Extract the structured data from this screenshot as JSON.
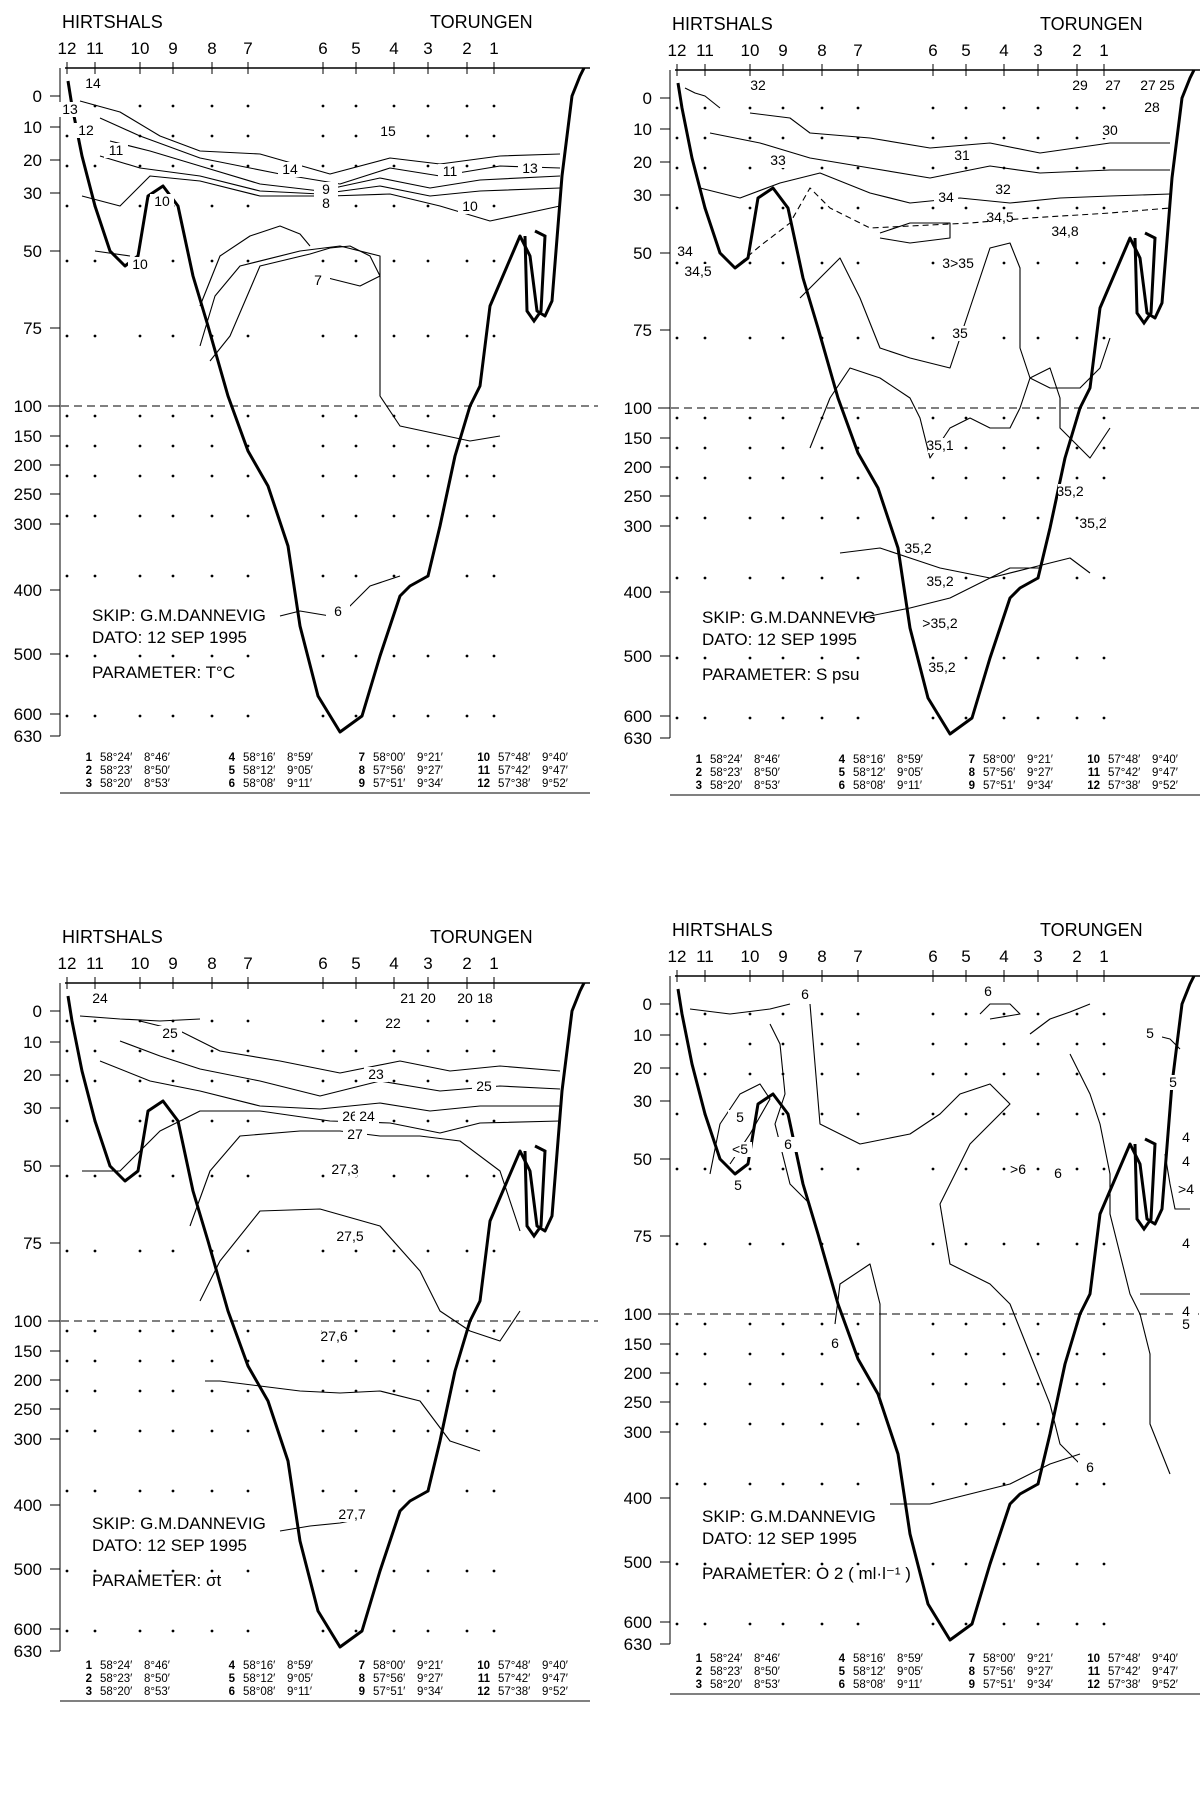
{
  "station_labels": [
    "12",
    "11",
    "10",
    "9",
    "8",
    "7",
    "6",
    "5",
    "4",
    "3",
    "2",
    "1"
  ],
  "depth_labels": [
    "0",
    "10",
    "20",
    "30",
    "50",
    "75",
    "100",
    "150",
    "200",
    "250",
    "300",
    "400",
    "500",
    "600",
    "630"
  ],
  "coordinates": [
    {
      "n": "1",
      "lat": "58°24′",
      "lon": "8°46′"
    },
    {
      "n": "2",
      "lat": "58°23′",
      "lon": "8°50′"
    },
    {
      "n": "3",
      "lat": "58°20′",
      "lon": "8°53′"
    },
    {
      "n": "4",
      "lat": "58°16′",
      "lon": "8°59′"
    },
    {
      "n": "5",
      "lat": "58°12′",
      "lon": "9°05′"
    },
    {
      "n": "6",
      "lat": "58°08′",
      "lon": "9°11′"
    },
    {
      "n": "7",
      "lat": "58°00′",
      "lon": "9°21′"
    },
    {
      "n": "8",
      "lat": "57°56′",
      "lon": "9°27′"
    },
    {
      "n": "9",
      "lat": "57°51′",
      "lon": "9°34′"
    },
    {
      "n": "10",
      "lat": "57°48′",
      "lon": "9°40′"
    },
    {
      "n": "11",
      "lat": "57°42′",
      "lon": "9°47′"
    },
    {
      "n": "12",
      "lat": "57°38′",
      "lon": "9°52′"
    }
  ],
  "chart_data": [
    {
      "type": "contour-section",
      "left_label": "HIRTSHALS",
      "right_label": "TORUNGEN",
      "ship": "SKIP: G.M.DANNEVIG",
      "date": "DATO: 12 SEP 1995",
      "parameter": "PARAMETER: T°C",
      "y_ticks": [
        0,
        10,
        20,
        30,
        50,
        75,
        100,
        150,
        200,
        250,
        300,
        400,
        500,
        600,
        630
      ],
      "isoline_labels": [
        "14",
        "13",
        "12",
        "11",
        "10",
        "15",
        "14",
        "9",
        "8",
        "11",
        "13",
        "10",
        "7",
        "10",
        "6"
      ]
    },
    {
      "type": "contour-section",
      "left_label": "HIRTSHALS",
      "right_label": "TORUNGEN",
      "ship": "SKIP: G.M.DANNEVIG",
      "date": "DATO: 12 SEP 1995",
      "parameter": "PARAMETER: S psu",
      "y_ticks": [
        0,
        10,
        20,
        30,
        50,
        75,
        100,
        150,
        200,
        250,
        300,
        400,
        500,
        600,
        630
      ],
      "isoline_labels": [
        "32",
        "29",
        "27",
        "27",
        "25",
        "28",
        "30",
        "33",
        "31",
        "34",
        "32",
        "34,5",
        "34,8",
        "35",
        ">35",
        "34",
        "34,5",
        "35",
        "35,1",
        "35,2",
        "35,2",
        "35,2",
        "35,2",
        ">35,2",
        "35,2"
      ]
    },
    {
      "type": "contour-section",
      "left_label": "HIRTSHALS",
      "right_label": "TORUNGEN",
      "ship": "SKIP: G.M.DANNEVIG",
      "date": "DATO: 12 SEP 1995",
      "parameter": "PARAMETER: σt",
      "y_ticks": [
        0,
        10,
        20,
        30,
        50,
        75,
        100,
        150,
        200,
        250,
        300,
        400,
        500,
        600,
        630
      ],
      "isoline_labels": [
        "24",
        "21",
        "20",
        "20",
        "18",
        "22",
        "25",
        "23",
        "25",
        "26",
        "24",
        "27",
        "27,3",
        "27,5",
        "27,6",
        "27,7"
      ]
    },
    {
      "type": "contour-section",
      "left_label": "HIRTSHALS",
      "right_label": "TORUNGEN",
      "ship": "SKIP: G.M.DANNEVIG",
      "date": "DATO: 12 SEP 1995",
      "parameter": "PARAMETER: O 2 ( ml·l⁻¹ )",
      "y_ticks": [
        0,
        10,
        20,
        30,
        50,
        75,
        100,
        150,
        200,
        250,
        300,
        400,
        500,
        600,
        630
      ],
      "isoline_labels": [
        "6",
        "6",
        "5",
        "5",
        "<5",
        "6",
        "5",
        "6",
        ">6",
        "6",
        "5",
        "4",
        "4",
        ">4",
        "4",
        "4",
        "5",
        "6"
      ]
    }
  ]
}
